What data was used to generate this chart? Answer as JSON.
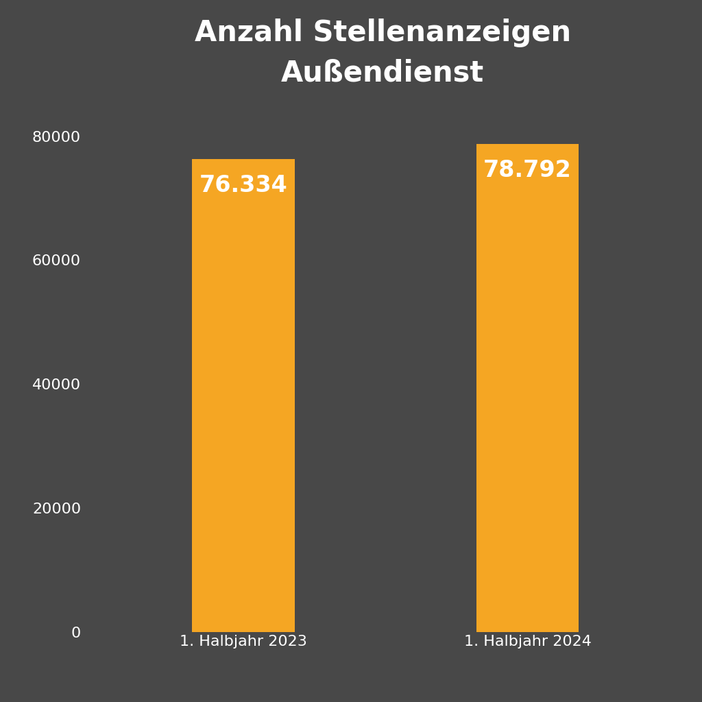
{
  "title": "Anzahl Stellenanzeigen\nAußendienst",
  "categories": [
    "1. Halbjahr 2023",
    "1. Halbjahr 2024"
  ],
  "values": [
    76334,
    78792
  ],
  "labels": [
    "76.334",
    "78.792"
  ],
  "bar_color": "#F5A623",
  "background_color": "#484848",
  "text_color": "#FFFFFF",
  "title_fontsize": 30,
  "label_fontsize": 24,
  "tick_fontsize": 16,
  "ylim": [
    0,
    85000
  ],
  "yticks": [
    0,
    20000,
    40000,
    60000,
    80000
  ],
  "bar_width": 0.18,
  "x_positions": [
    0.28,
    0.78
  ],
  "xlim": [
    0,
    1.05
  ]
}
